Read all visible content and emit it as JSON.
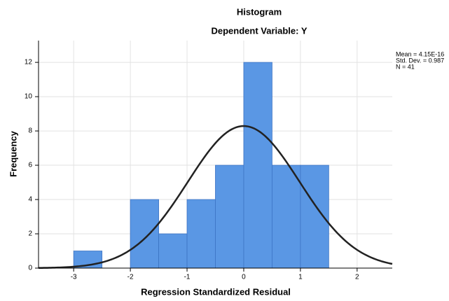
{
  "chart_data": {
    "type": "histogram",
    "title": "Histogram",
    "subtitle": "Dependent Variable: Y",
    "x_label": "Regression Standardized Residual",
    "y_label": "Frequency",
    "bins": [
      -3,
      -2.5,
      -2,
      -1.5,
      -1,
      -0.5,
      0,
      0.5,
      1,
      1.5
    ],
    "values": [
      1,
      0,
      4,
      2,
      4,
      6,
      12,
      6,
      6
    ],
    "color": "#5a97e4",
    "xlim": [
      -3.62,
      2.62
    ],
    "xticks": [
      -3,
      -2,
      -1,
      0,
      1,
      2
    ],
    "ylim": [
      0,
      13.27
    ],
    "yticks": [
      0,
      2,
      4,
      6,
      8,
      10,
      12
    ],
    "grid": true,
    "normal_curve": {
      "mean": 4.15e-16,
      "sd": 0.987,
      "n": 41,
      "color": "#222222"
    },
    "annotations": [
      "Mean = 4.15E-16",
      "Std. Dev. = 0.987",
      "N = 41"
    ]
  }
}
